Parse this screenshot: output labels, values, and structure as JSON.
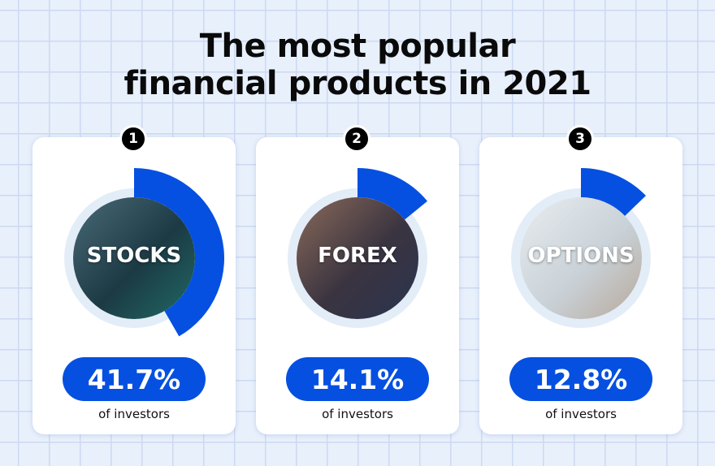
{
  "title_line1": "The most popular",
  "title_line2": "financial products in 2021",
  "colors": {
    "accent": "#0550e0",
    "ring": "#e3edf8"
  },
  "chart_data": {
    "type": "pie",
    "title": "The most popular financial products in 2021",
    "categories": [
      "STOCKS",
      "FOREX",
      "OPTIONS"
    ],
    "values": [
      41.7,
      14.1,
      12.8
    ],
    "unit": "% of investors",
    "items": [
      {
        "rank": "1",
        "name": "STOCKS",
        "value": 41.7,
        "label": "41.7%",
        "sub": "of investors"
      },
      {
        "rank": "2",
        "name": "FOREX",
        "value": 14.1,
        "label": "14.1%",
        "sub": "of investors"
      },
      {
        "rank": "3",
        "name": "OPTIONS",
        "value": 12.8,
        "label": "12.8%",
        "sub": "of investors"
      }
    ]
  }
}
